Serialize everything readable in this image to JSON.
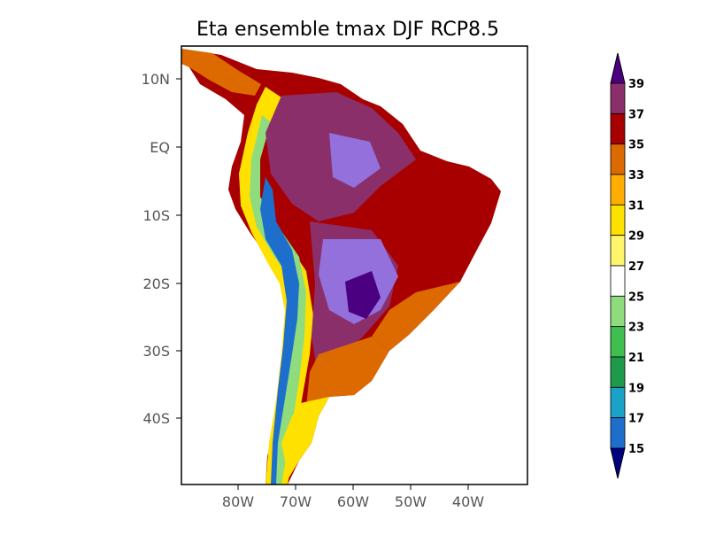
{
  "title": "Eta ensemble tmax DJF RCP8.5",
  "axes": {
    "lat_ticks": [
      "10N",
      "EQ",
      "10S",
      "20S",
      "30S",
      "40S"
    ],
    "lon_ticks": [
      "80W",
      "70W",
      "60W",
      "50W",
      "40W"
    ]
  },
  "colorbar": {
    "labels": [
      "15",
      "17",
      "19",
      "21",
      "23",
      "25",
      "27",
      "29",
      "31",
      "33",
      "35",
      "37",
      "39"
    ],
    "colors": [
      "#0a2f9c",
      "#1e6fcc",
      "#1aa2c8",
      "#1e9a4a",
      "#3fbf4f",
      "#8fdc7e",
      "#ffffff",
      "#fff56a",
      "#ffe100",
      "#ffad00",
      "#dd6a00",
      "#a80000",
      "#8b2f6b",
      "#9370db",
      "#4b0082"
    ],
    "under_color": "#000080",
    "over_color": "#4b0082"
  }
}
